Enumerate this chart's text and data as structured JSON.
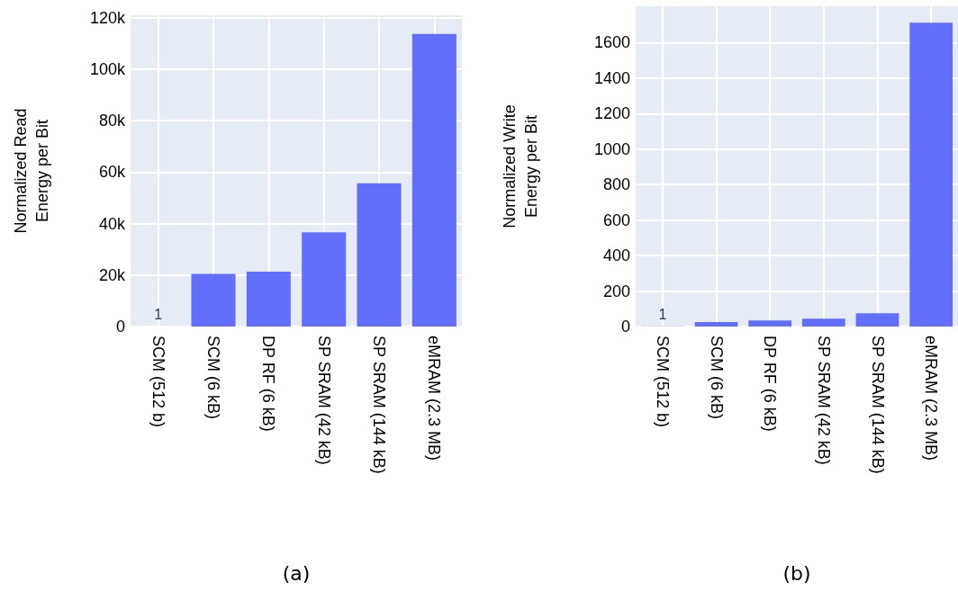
{
  "chart_data": [
    {
      "type": "bar",
      "ylabel": "Normalized Read\nEnergy per Bit",
      "categories": [
        "SCM (512 b)",
        "SCM (6 kB)",
        "DP RF (6 kB)",
        "SP SRAM (42 kB)",
        "SP SRAM (144 kB)",
        "eMRAM (2.3 MB)"
      ],
      "values": [
        1,
        20500,
        21300,
        36600,
        55700,
        113700
      ],
      "value_labels": [
        "1",
        null,
        null,
        null,
        null,
        null
      ],
      "color": "#636efa",
      "ylim": [
        0,
        121000
      ],
      "yticks": [
        {
          "value": 0,
          "label": "0"
        },
        {
          "value": 20000,
          "label": "20k"
        },
        {
          "value": 40000,
          "label": "40k"
        },
        {
          "value": 60000,
          "label": "60k"
        },
        {
          "value": 80000,
          "label": "80k"
        },
        {
          "value": 100000,
          "label": "100k"
        },
        {
          "value": 120000,
          "label": "120k"
        }
      ],
      "grid": true,
      "annotations": [
        "(a)"
      ]
    },
    {
      "type": "bar",
      "ylabel": "Normalized Write\nEnergy per Bit",
      "categories": [
        "SCM (512 b)",
        "SCM (6 kB)",
        "DP RF (6 kB)",
        "SP SRAM (42 kB)",
        "SP SRAM (144 kB)",
        "eMRAM (2.3 MB)"
      ],
      "values": [
        1,
        25,
        34,
        44,
        75,
        1712
      ],
      "value_labels": [
        "1",
        null,
        null,
        null,
        null,
        null
      ],
      "color": "#636efa",
      "ylim": [
        0,
        1805
      ],
      "yticks": [
        0,
        200,
        400,
        600,
        800,
        1000,
        1200,
        1400,
        1600
      ],
      "grid": true,
      "annotations": [
        "(b)"
      ]
    }
  ]
}
